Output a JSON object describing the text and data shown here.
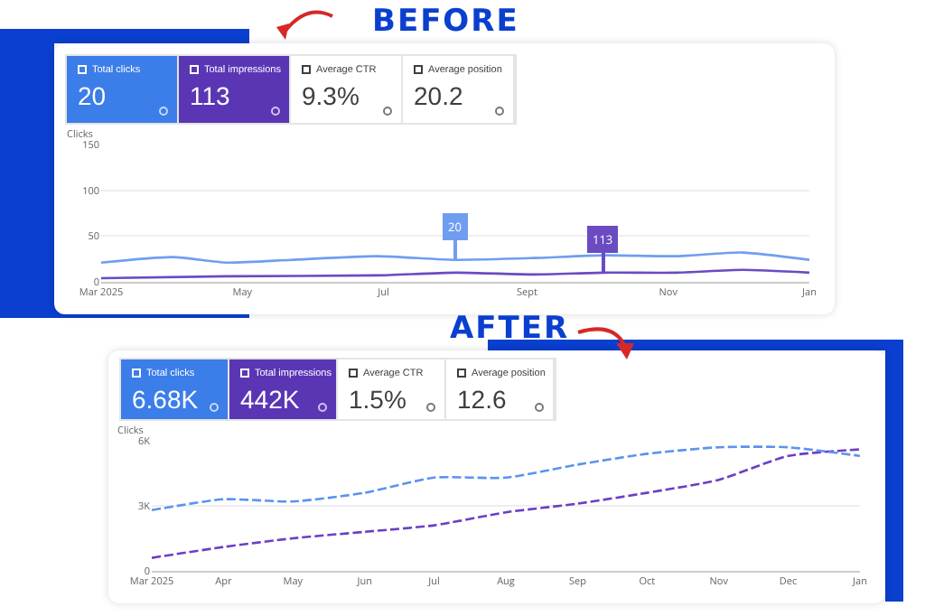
{
  "chart_data": [
    {
      "type": "other",
      "title": "BEFORE",
      "categories": [
        "Total clicks",
        "Total impressions",
        "Average CTR",
        "Average position"
      ],
      "value_labels": [
        "20",
        "113",
        "9.3%",
        "20.2"
      ],
      "colors": [
        "#3b7de9",
        "#5a36b5",
        "#ffffff",
        "#ffffff"
      ]
    },
    {
      "type": "line",
      "ylabel": "Clicks",
      "line_style": "solid",
      "marker": "none",
      "grid": "y",
      "x": [
        "2025-03-01",
        "2025-04-01",
        "2025-04-24",
        "2025-05-22",
        "2025-06-28",
        "2025-08-01",
        "2025-09-04",
        "2025-10-04",
        "2025-11-05",
        "2025-12-03",
        "2026-01-01"
      ],
      "series": [
        {
          "color": "#6f9ef0",
          "values": [
            21,
            27,
            21,
            24,
            28,
            24,
            26,
            29,
            28,
            32,
            24
          ]
        },
        {
          "color": "#6a4bc2",
          "x": [
            "2025-03-01",
            "2025-04-24",
            "2025-06-28",
            "2025-08-01",
            "2025-09-04",
            "2025-10-04",
            "2025-11-05",
            "2025-12-03",
            "2026-01-01"
          ],
          "values": [
            4,
            6,
            7,
            10,
            8,
            10,
            10,
            13,
            10
          ]
        }
      ],
      "xlim": [
        "2025-03-01",
        "2026-01-01"
      ],
      "xticks": [
        {
          "value": "2025-03-01",
          "label": "Mar 2025"
        },
        {
          "value": "2025-05-01",
          "label": "May"
        },
        {
          "value": "2025-07-01",
          "label": "Jul"
        },
        {
          "value": "2025-09-01",
          "label": "Sept"
        },
        {
          "value": "2025-11-01",
          "label": "Nov"
        },
        {
          "value": "2026-01-01",
          "label": "Jan"
        }
      ],
      "ylim": [
        0,
        150
      ],
      "yticks": [
        0,
        50,
        100,
        150
      ],
      "annotations": [
        {
          "text": "20",
          "x": "2025-08-01",
          "y": 24
        },
        {
          "text": "113",
          "x": "2025-10-04",
          "y": 10
        }
      ]
    },
    {
      "type": "other",
      "title": "AFTER",
      "categories": [
        "Total clicks",
        "Total impressions",
        "Average CTR",
        "Average position"
      ],
      "value_labels": [
        "6.68K",
        "442K",
        "1.5%",
        "12.6"
      ],
      "colors": [
        "#3b7de9",
        "#5a36b5",
        "#ffffff",
        "#ffffff"
      ]
    },
    {
      "type": "line",
      "ylabel": "Clicks",
      "line_style": "dashed",
      "marker": "none",
      "grid": "y",
      "x": [
        "2025-03-01",
        "2025-04-01",
        "2025-05-01",
        "2025-06-01",
        "2025-07-01",
        "2025-08-01",
        "2025-09-01",
        "2025-10-01",
        "2025-11-01",
        "2025-12-01",
        "2026-01-01"
      ],
      "series": [
        {
          "color": "#5b93ee",
          "values": [
            2800,
            3300,
            3200,
            3600,
            4300,
            4300,
            4900,
            5400,
            5700,
            5700,
            5300
          ]
        },
        {
          "color": "#6a3fc4",
          "values": [
            600,
            1100,
            1500,
            1800,
            2100,
            2700,
            3100,
            3600,
            4200,
            5300,
            5600
          ]
        }
      ],
      "xlim": [
        "2025-03-01",
        "2026-01-01"
      ],
      "xticks": [
        {
          "value": "2025-03-01",
          "label": "Mar 2025"
        },
        {
          "value": "2025-04-01",
          "label": "Apr"
        },
        {
          "value": "2025-05-01",
          "label": "May"
        },
        {
          "value": "2025-06-01",
          "label": "Jun"
        },
        {
          "value": "2025-07-01",
          "label": "Jul"
        },
        {
          "value": "2025-08-01",
          "label": "Aug"
        },
        {
          "value": "2025-09-01",
          "label": "Sep"
        },
        {
          "value": "2025-10-01",
          "label": "Oct"
        },
        {
          "value": "2025-11-01",
          "label": "Nov"
        },
        {
          "value": "2025-12-01",
          "label": "Dec"
        },
        {
          "value": "2026-01-01",
          "label": "Jan"
        }
      ],
      "ylim": [
        0,
        6000
      ],
      "yticks": [
        {
          "value": 0,
          "label": "0"
        },
        {
          "value": 3000,
          "label": "3K"
        },
        {
          "value": 6000,
          "label": "6K"
        }
      ]
    }
  ]
}
